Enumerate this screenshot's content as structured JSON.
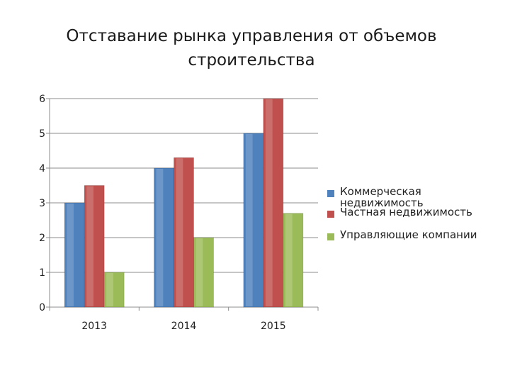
{
  "chart_data": {
    "type": "bar",
    "title": "Отставание рынка управления от объемов строительства",
    "title_lines": [
      "Отставание рынка управления от объемов",
      "строительства"
    ],
    "categories": [
      "2013",
      "2014",
      "2015"
    ],
    "series": [
      {
        "name": "Коммерческая недвижимость",
        "values": [
          3,
          4,
          5
        ],
        "color": "#4f81bd"
      },
      {
        "name": "Частная  недвижимость",
        "values": [
          3.5,
          4.3,
          6
        ],
        "color": "#c0504d"
      },
      {
        "name": "Управляющие компании",
        "values": [
          1,
          2,
          2.7
        ],
        "color": "#9bbb59"
      }
    ],
    "ylim": [
      0,
      6
    ],
    "yticks": [
      "0",
      "1",
      "2",
      "3",
      "4",
      "5",
      "6"
    ],
    "xlabel": "",
    "ylabel": "",
    "grid": true,
    "legend_position": "right"
  }
}
